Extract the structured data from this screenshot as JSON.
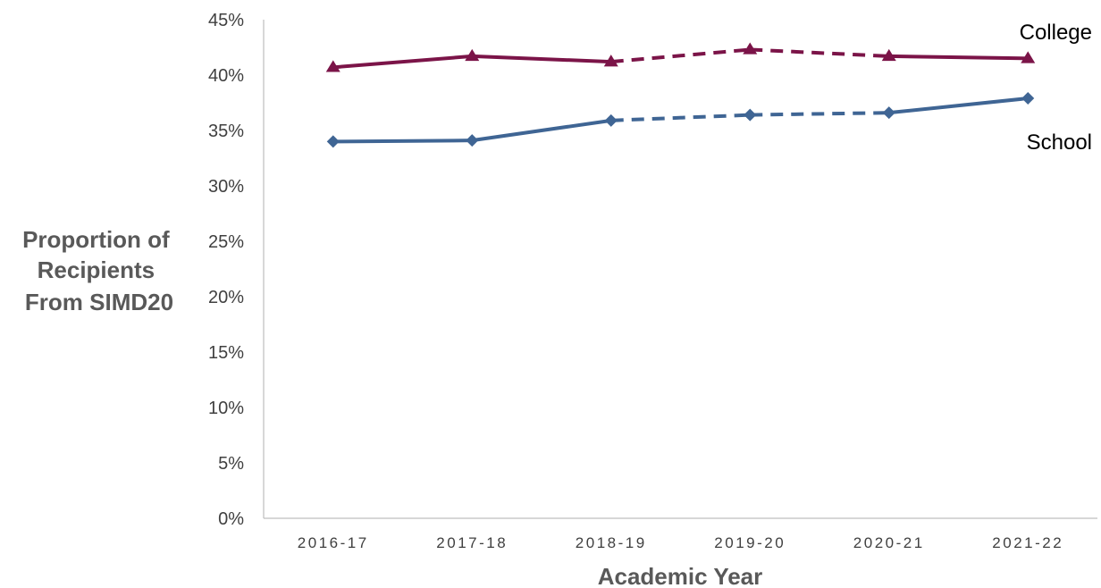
{
  "chart_data": {
    "type": "line",
    "title": "",
    "xlabel": "Academic Year",
    "ylabel_lines": [
      "Proportion of",
      "Recipients",
      "From SIMD20"
    ],
    "categories": [
      "2016-17",
      "2017-18",
      "2018-19",
      "2019-20",
      "2020-21",
      "2021-22"
    ],
    "ylim": [
      0,
      0.45
    ],
    "yticks": [
      0,
      0.05,
      0.1,
      0.15,
      0.2,
      0.25,
      0.3,
      0.35,
      0.4,
      0.45
    ],
    "ytick_labels": [
      "0%",
      "5%",
      "10%",
      "15%",
      "20%",
      "25%",
      "30%",
      "35%",
      "40%",
      "45%"
    ],
    "grid": false,
    "legend": "none",
    "series": [
      {
        "name": "College",
        "values": [
          0.407,
          0.417,
          0.412,
          0.423,
          0.417,
          0.415
        ],
        "color": "#7b1448",
        "marker": "triangle",
        "dashed_from_index": 2,
        "dashed_to_index": 4
      },
      {
        "name": "School",
        "values": [
          0.34,
          0.341,
          0.359,
          0.364,
          0.366,
          0.379
        ],
        "color": "#3f6594",
        "marker": "diamond",
        "dashed_from_index": 2,
        "dashed_to_index": 4
      }
    ]
  }
}
